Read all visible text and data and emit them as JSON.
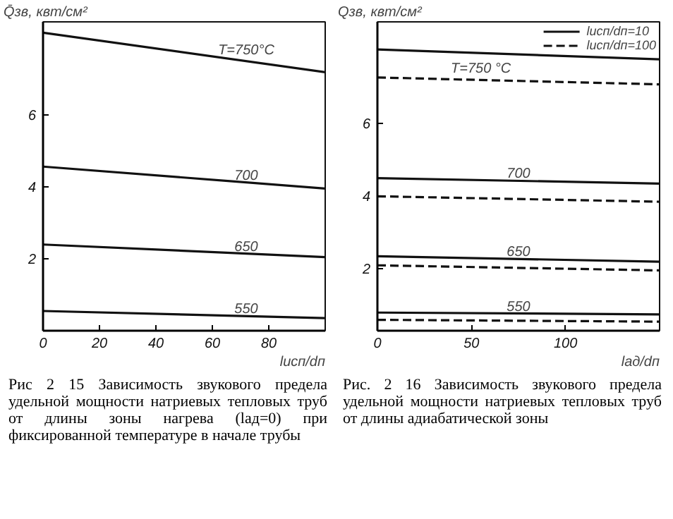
{
  "chart_data": [
    {
      "type": "line",
      "xlabel": "lисп/dп",
      "ylabel": "Q̄зв, квт/см²",
      "x": [
        0,
        100
      ],
      "xlim": [
        0,
        100
      ],
      "xticks": [
        0,
        20,
        40,
        60,
        80
      ],
      "ylim": [
        0,
        8.6
      ],
      "yticks": [
        2,
        4,
        6
      ],
      "grid": false,
      "line_style": "solid",
      "series": [
        {
          "color": "#111111",
          "values": [
            8.3,
            7.2
          ]
        },
        {
          "color": "#111111",
          "values": [
            4.57,
            3.96
          ]
        },
        {
          "color": "#111111",
          "values": [
            2.4,
            2.05
          ]
        },
        {
          "color": "#111111",
          "values": [
            0.55,
            0.35
          ]
        }
      ],
      "annotations": [
        {
          "text": "T=750°C",
          "x": 72,
          "y": 7.51
        },
        {
          "text": "700",
          "x": 72,
          "y": 4.13
        },
        {
          "text": "650",
          "x": 72,
          "y": 2.15
        },
        {
          "text": "550",
          "x": 72,
          "y": 0.41
        },
        "Рис 2 15 Зависимость звукового предела удельной мощности натриевых тепловых труб от длины зоны нагрева (lад=0) при фиксированной температуре в начале трубы"
      ]
    },
    {
      "type": "line",
      "xlabel": "lад/dп",
      "ylabel": "Qзв, квт/см²",
      "x": [
        0,
        150
      ],
      "xlim": [
        0,
        150
      ],
      "xticks": [
        0,
        50,
        100
      ],
      "ylim": [
        0.3,
        8.8
      ],
      "yticks": [
        2,
        4,
        6
      ],
      "grid": false,
      "legend": "top right",
      "series": [
        {
          "name": "lисп/dп=10",
          "color": "#111111",
          "line_style": "solid",
          "values": [
            8.04,
            7.77
          ]
        },
        {
          "name": "lисп/dп=100",
          "color": "#111111",
          "line_style": "dashed",
          "values": [
            7.27,
            7.08
          ]
        },
        {
          "color": "#111111",
          "line_style": "solid",
          "values": [
            4.5,
            4.35
          ]
        },
        {
          "color": "#111111",
          "line_style": "dashed",
          "values": [
            4.0,
            3.85
          ]
        },
        {
          "color": "#111111",
          "line_style": "solid",
          "values": [
            2.35,
            2.2
          ]
        },
        {
          "color": "#111111",
          "line_style": "dashed",
          "values": [
            2.1,
            1.96
          ]
        },
        {
          "color": "#111111",
          "line_style": "solid",
          "values": [
            0.8,
            0.75
          ]
        },
        {
          "color": "#111111",
          "line_style": "dashed",
          "values": [
            0.6,
            0.55
          ]
        }
      ],
      "annotations": [
        {
          "text": "T=750 °C",
          "x": 55,
          "y": 7.2
        },
        {
          "text": "700",
          "x": 75,
          "y": 4.425
        },
        {
          "text": "650",
          "x": 75,
          "y": 2.275
        },
        {
          "text": "550",
          "x": 75,
          "y": 0.775
        },
        "Рис. 2 16 Зависимость звукового предела удельной мощности натриевых тепловых труб от длины адиабатической зоны"
      ]
    }
  ]
}
